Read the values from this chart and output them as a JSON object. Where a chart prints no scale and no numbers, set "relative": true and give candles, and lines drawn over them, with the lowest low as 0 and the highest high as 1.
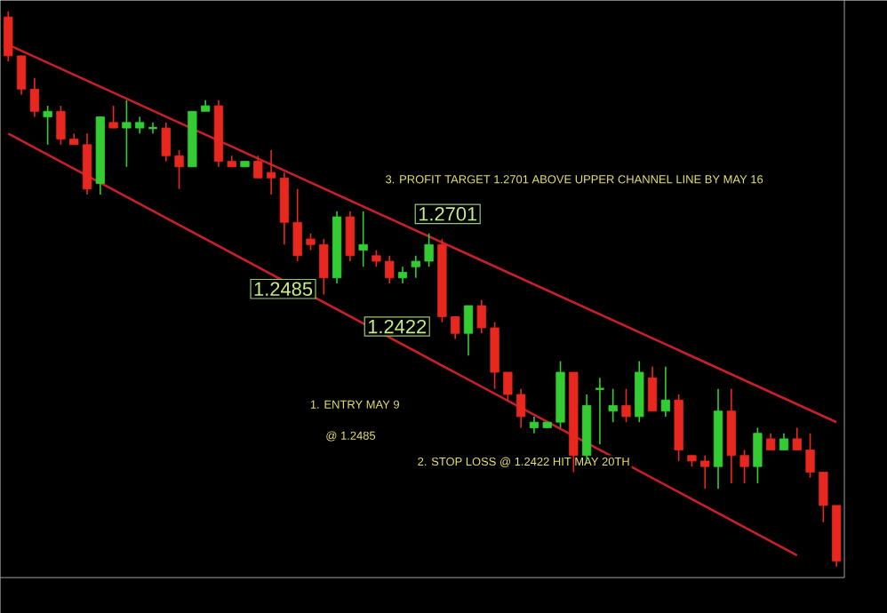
{
  "chart_data": {
    "type": "candlestick",
    "relative": true,
    "categories": [
      null,
      null,
      null,
      null,
      null,
      null,
      null,
      null,
      null,
      null,
      null,
      null,
      null,
      null,
      null,
      null,
      null,
      null,
      null,
      null,
      null,
      null,
      null,
      null,
      null,
      null,
      null,
      null,
      null,
      null,
      null,
      null,
      null,
      null,
      null,
      null,
      null,
      null,
      null,
      null,
      null,
      null,
      null,
      null,
      null,
      null,
      null,
      null,
      null,
      null,
      null,
      null,
      null,
      null,
      null,
      null,
      null,
      null,
      null,
      null,
      null,
      null,
      null,
      null
    ],
    "ohlc": [
      [
        0.99,
        1,
        0.91,
        0.92
      ],
      [
        0.92,
        0.92,
        0.85,
        0.86
      ],
      [
        0.86,
        0.88,
        0.81,
        0.82
      ],
      [
        0.81,
        0.83,
        0.76,
        0.82
      ],
      [
        0.82,
        0.83,
        0.76,
        0.77
      ],
      [
        0.77,
        0.78,
        0.76,
        0.76
      ],
      [
        0.76,
        0.78,
        0.67,
        0.68
      ],
      [
        0.69,
        0.81,
        0.67,
        0.81
      ],
      [
        0.8,
        0.83,
        0.79,
        0.79
      ],
      [
        0.79,
        0.84,
        0.72,
        0.8
      ],
      [
        0.79,
        0.81,
        0.78,
        0.8
      ],
      [
        0.79,
        0.8,
        0.78,
        0.79
      ],
      [
        0.79,
        0.8,
        0.73,
        0.74
      ],
      [
        0.74,
        0.75,
        0.68,
        0.72
      ],
      [
        0.72,
        0.82,
        0.72,
        0.82
      ],
      [
        0.82,
        0.84,
        0.82,
        0.83
      ],
      [
        0.83,
        0.84,
        0.72,
        0.73
      ],
      [
        0.73,
        0.74,
        0.72,
        0.72
      ],
      [
        0.72,
        0.73,
        0.72,
        0.73
      ],
      [
        0.73,
        0.74,
        0.7,
        0.7
      ],
      [
        0.71,
        0.75,
        0.67,
        0.7
      ],
      [
        0.7,
        0.71,
        0.58,
        0.62
      ],
      [
        0.62,
        0.68,
        0.55,
        0.56
      ],
      [
        0.59,
        0.6,
        0.57,
        0.58
      ],
      [
        0.58,
        0.59,
        0.49,
        0.52
      ],
      [
        0.52,
        0.64,
        0.51,
        0.63
      ],
      [
        0.63,
        0.64,
        0.55,
        0.56
      ],
      [
        0.57,
        0.64,
        0.54,
        0.58
      ],
      [
        0.56,
        0.57,
        0.54,
        0.55
      ],
      [
        0.55,
        0.56,
        0.51,
        0.52
      ],
      [
        0.52,
        0.54,
        0.51,
        0.53
      ],
      [
        0.54,
        0.56,
        0.52,
        0.55
      ],
      [
        0.55,
        0.6,
        0.54,
        0.58
      ],
      [
        0.58,
        0.59,
        0.44,
        0.45
      ],
      [
        0.45,
        0.45,
        0.41,
        0.42
      ],
      [
        0.42,
        0.47,
        0.38,
        0.47
      ],
      [
        0.47,
        0.48,
        0.42,
        0.43
      ],
      [
        0.43,
        0.44,
        0.32,
        0.35
      ],
      [
        0.35,
        0.35,
        0.3,
        0.31
      ],
      [
        0.31,
        0.32,
        0.25,
        0.27
      ],
      [
        0.25,
        0.27,
        0.24,
        0.26
      ],
      [
        0.25,
        0.26,
        0.25,
        0.26
      ],
      [
        0.26,
        0.37,
        0.25,
        0.35
      ],
      [
        0.35,
        0.35,
        0.17,
        0.2
      ],
      [
        0.2,
        0.31,
        0.19,
        0.29
      ],
      [
        0.32,
        0.34,
        0.22,
        0.32
      ],
      [
        0.28,
        0.32,
        0.26,
        0.29
      ],
      [
        0.29,
        0.32,
        0.26,
        0.27
      ],
      [
        0.27,
        0.37,
        0.26,
        0.35
      ],
      [
        0.34,
        0.36,
        0.28,
        0.28
      ],
      [
        0.28,
        0.36,
        0.27,
        0.3
      ],
      [
        0.3,
        0.31,
        0.19,
        0.21
      ],
      [
        0.2,
        0.2,
        0.18,
        0.19
      ],
      [
        0.19,
        0.2,
        0.14,
        0.18
      ],
      [
        0.18,
        0.32,
        0.14,
        0.28
      ],
      [
        0.28,
        0.32,
        0.15,
        0.2
      ],
      [
        0.2,
        0.21,
        0.15,
        0.18
      ],
      [
        0.18,
        0.25,
        0.15,
        0.24
      ],
      [
        0.23,
        0.24,
        0.21,
        0.21
      ],
      [
        0.21,
        0.24,
        0.21,
        0.23
      ],
      [
        0.23,
        0.25,
        0.21,
        0.21
      ],
      [
        0.21,
        0.24,
        0.16,
        0.17
      ],
      [
        0.17,
        0.17,
        0.08,
        0.11
      ],
      [
        0.11,
        0.11,
        0,
        0.01
      ]
    ],
    "colors": [
      "#e8281e",
      "#e8281e",
      "#e8281e",
      "#33cc33",
      "#e8281e",
      "#e8281e",
      "#e8281e",
      "#33cc33",
      "#e8281e",
      "#33cc33",
      "#33cc33",
      "#33cc33",
      "#e8281e",
      "#e8281e",
      "#33cc33",
      "#33cc33",
      "#e8281e",
      "#e8281e",
      "#33cc33",
      "#e8281e",
      "#e8281e",
      "#e8281e",
      "#e8281e",
      "#e8281e",
      "#e8281e",
      "#33cc33",
      "#e8281e",
      "#33cc33",
      "#e8281e",
      "#e8281e",
      "#33cc33",
      "#33cc33",
      "#33cc33",
      "#e8281e",
      "#e8281e",
      "#33cc33",
      "#e8281e",
      "#e8281e",
      "#e8281e",
      "#e8281e",
      "#33cc33",
      "#33cc33",
      "#33cc33",
      "#e8281e",
      "#33cc33",
      "#33cc33",
      "#33cc33",
      "#e8281e",
      "#33cc33",
      "#e8281e",
      "#33cc33",
      "#e8281e",
      "#e8281e",
      "#e8281e",
      "#33cc33",
      "#e8281e",
      "#e8281e",
      "#33cc33",
      "#e8281e",
      "#33cc33",
      "#e8281e",
      "#e8281e",
      "#e8281e",
      "#e8281e"
    ],
    "series": [
      {
        "type": "line",
        "values": [
          0.94,
          null,
          null,
          null,
          null,
          null,
          null,
          null,
          null,
          null,
          null,
          null,
          null,
          null,
          null,
          null,
          null,
          null,
          null,
          null,
          null,
          null,
          null,
          null,
          null,
          null,
          null,
          null,
          null,
          null,
          null,
          null,
          null,
          null,
          null,
          null,
          null,
          null,
          null,
          null,
          null,
          null,
          null,
          null,
          null,
          null,
          null,
          null,
          null,
          null,
          null,
          null,
          null,
          null,
          null,
          null,
          null,
          null,
          null,
          null,
          null,
          null,
          null,
          0.26
        ],
        "color": "#c8202a"
      },
      {
        "type": "line",
        "values": [
          0.78,
          null,
          null,
          null,
          null,
          null,
          null,
          null,
          null,
          null,
          null,
          null,
          null,
          null,
          null,
          null,
          null,
          null,
          null,
          null,
          null,
          null,
          null,
          null,
          null,
          null,
          null,
          null,
          null,
          null,
          null,
          null,
          null,
          null,
          null,
          null,
          null,
          null,
          null,
          null,
          null,
          null,
          null,
          null,
          null,
          null,
          null,
          null,
          null,
          null,
          null,
          null,
          null,
          null,
          null,
          null,
          null,
          null,
          null,
          null,
          0.02,
          null,
          null,
          null
        ],
        "color": "#c8202a"
      }
    ],
    "annotations": [
      "3. PROFIT TARGET 1.2701  ABOVE UPPER CHANNEL LINE BY MAY 16",
      "1.2701",
      "1.2485",
      "1.2422",
      "1. ENTRY MAY 9",
      "@ 1.2485",
      "2. STOP LOSS @ 1.2422 HIT MAY 20TH"
    ]
  }
}
